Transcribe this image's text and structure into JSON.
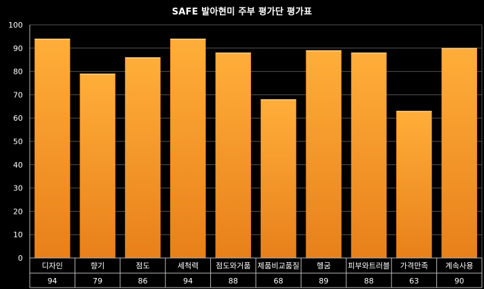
{
  "chart_data": {
    "type": "bar",
    "title": "SAFE 발아현미 주부 평가단 평가표",
    "categories": [
      "디자인",
      "향기",
      "점도",
      "세척력",
      "점도와거품",
      "제품비교품질",
      "헹굼",
      "피부와트러블",
      "가격만족",
      "계속사용"
    ],
    "values": [
      94,
      79,
      86,
      94,
      88,
      68,
      89,
      88,
      63,
      90
    ],
    "ylim": [
      0,
      100
    ],
    "ytick_step": 10,
    "yticks": [
      "0",
      "10",
      "20",
      "30",
      "40",
      "50",
      "60",
      "70",
      "80",
      "90",
      "100"
    ],
    "grid": true,
    "legend": "none",
    "data_table": true,
    "colors": {
      "background": "#000000",
      "bar_top": "#ffae3a",
      "bar_bottom": "#e8801a",
      "bar_edge": "#ffd08a",
      "grid": "#555555",
      "axis": "#bbbbbb",
      "text": "#ffffff"
    }
  }
}
